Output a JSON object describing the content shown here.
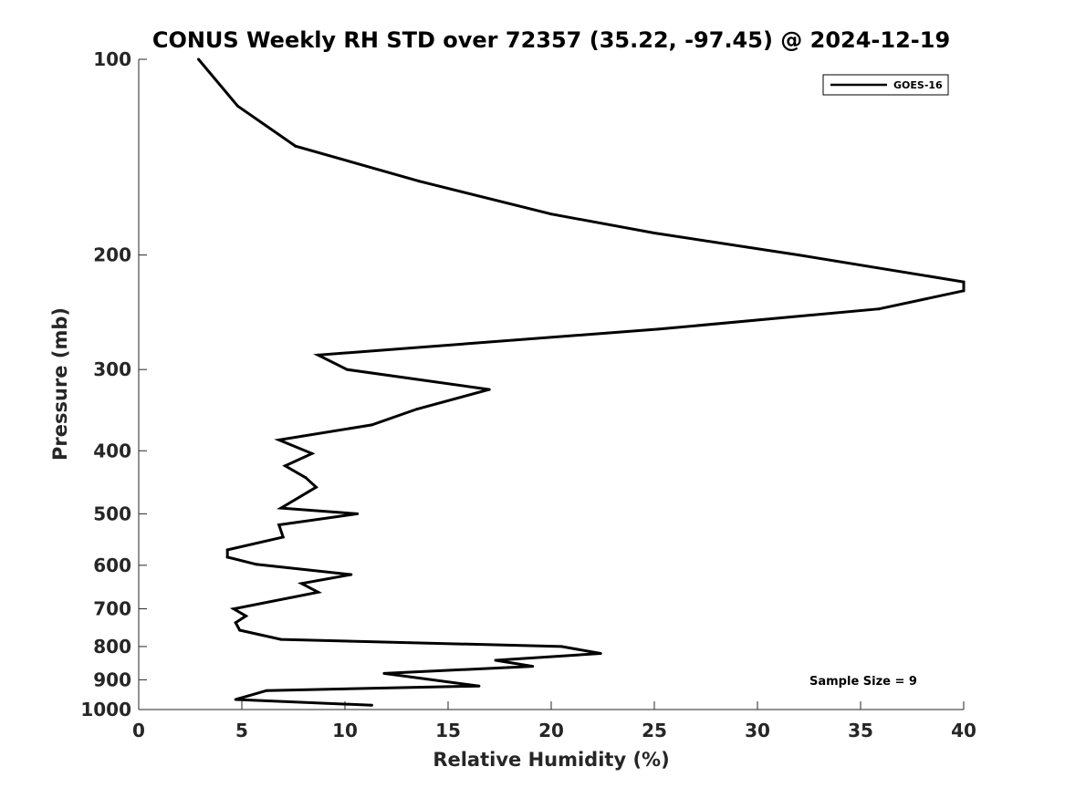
{
  "chart_data": {
    "type": "line",
    "title": "CONUS Weekly RH STD over 72357 (35.22, -97.45) @ 2024-12-19",
    "xlabel": "Relative Humidity (%)",
    "ylabel": "Pressure (mb)",
    "xlim": [
      0,
      40
    ],
    "ylim": [
      100,
      1000
    ],
    "yscale": "log",
    "yreversed": true,
    "grid": false,
    "legend_position": "top-right",
    "xticks": [
      0,
      5,
      10,
      15,
      20,
      25,
      30,
      35,
      40
    ],
    "yticks": [
      100,
      200,
      300,
      400,
      500,
      600,
      700,
      800,
      900,
      1000
    ],
    "series": [
      {
        "name": "GOES-16",
        "color": "#000000",
        "x": [
          2.9,
          4.8,
          7.6,
          13.6,
          20.0,
          25.0,
          32.0,
          40.0,
          40.0,
          35.9,
          25.2,
          8.7,
          10.1,
          17.0,
          13.5,
          11.3,
          6.8,
          8.4,
          7.1,
          8.1,
          8.6,
          6.9,
          10.6,
          6.8,
          7.0,
          4.3,
          4.3,
          5.7,
          10.3,
          7.9,
          8.7,
          4.6,
          5.2,
          4.7,
          4.9,
          6.9,
          20.5,
          22.4,
          17.3,
          19.1,
          11.9,
          16.5,
          6.2,
          4.7,
          11.3
        ],
        "y": [
          100,
          118,
          136,
          154,
          173,
          185,
          200,
          220,
          227,
          242,
          260,
          285,
          300,
          322,
          345,
          365,
          385,
          404,
          422,
          440,
          455,
          490,
          500,
          520,
          543,
          568,
          583,
          598,
          620,
          640,
          660,
          700,
          718,
          735,
          755,
          780,
          800,
          820,
          840,
          858,
          880,
          920,
          935,
          965,
          985
        ]
      }
    ],
    "annotations": [
      "Sample Size = 9"
    ]
  }
}
